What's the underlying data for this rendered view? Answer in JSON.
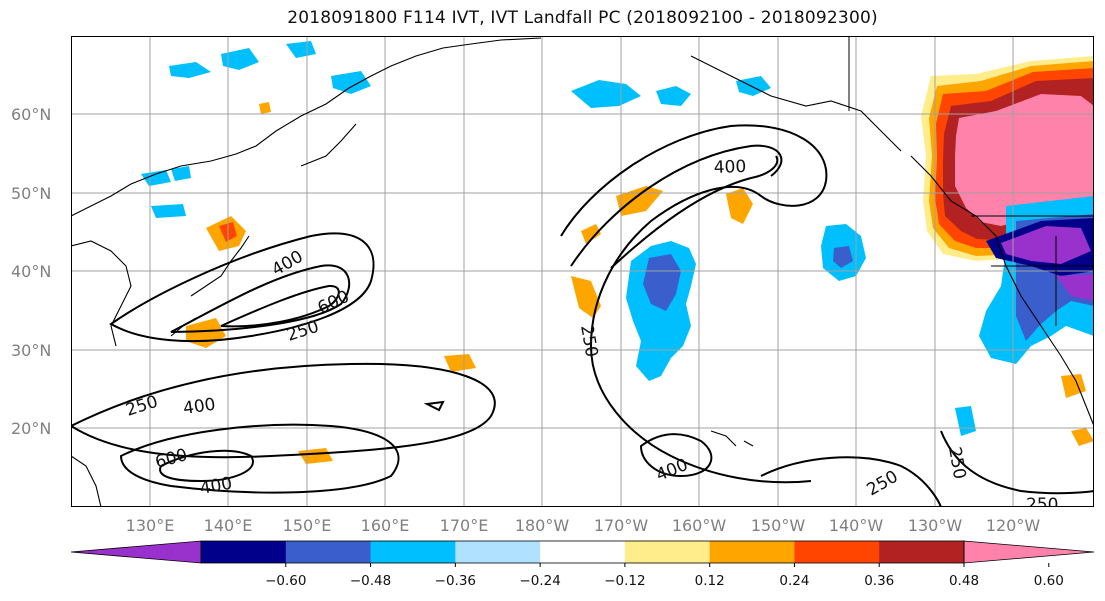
{
  "title": "2018091800 F114 IVT, IVT Landfall PC (2018092100 - 2018092300)",
  "map": {
    "lat_labels": [
      "60°N",
      "50°N",
      "40°N",
      "30°N",
      "20°N"
    ],
    "lon_labels": [
      "130°E",
      "140°E",
      "150°E",
      "160°E",
      "170°E",
      "180°W",
      "170°W",
      "160°W",
      "150°W",
      "140°W",
      "130°W",
      "120°W"
    ],
    "gridlines": true,
    "coastlines": true
  },
  "contours": {
    "color": "#000000",
    "labels": [
      "400",
      "600",
      "250",
      "400",
      "600",
      "400",
      "250",
      "400",
      "250",
      "400",
      "250",
      "250",
      "250"
    ]
  },
  "colorbar": {
    "ticks": [
      "−0.60",
      "−0.48",
      "−0.36",
      "−0.24",
      "−0.12",
      "0.12",
      "0.24",
      "0.36",
      "0.48",
      "0.60"
    ],
    "colors": [
      "#9932cc",
      "#00008b",
      "#3a5fcd",
      "#00bfff",
      "#b0e2ff",
      "#ffffff",
      "#ffec8b",
      "#ffa500",
      "#ff4500",
      "#b22222",
      "#ff82ab"
    ],
    "extend": "both"
  }
}
